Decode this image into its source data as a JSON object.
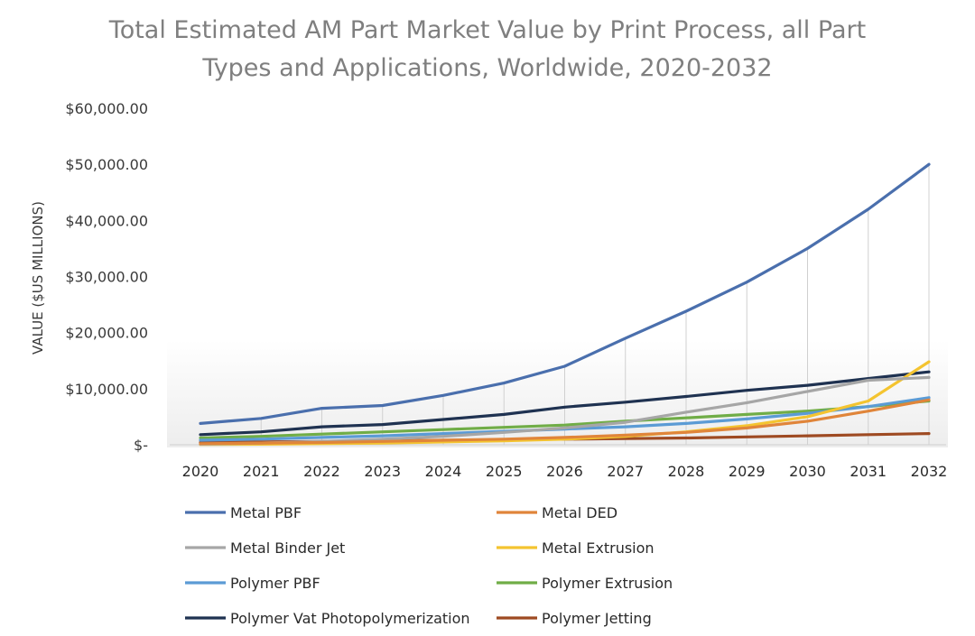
{
  "chart_data": {
    "type": "line",
    "title_lines": [
      "Total Estimated AM Part Market Value by Print Process, all Part",
      "Types and Applications, Worldwide, 2020-2032"
    ],
    "xlabel": "",
    "ylabel": "VALUE ($US MILLIONS)",
    "ylim": [
      0,
      60000
    ],
    "yticks": [
      0,
      10000,
      20000,
      30000,
      40000,
      50000,
      60000
    ],
    "ytick_labels": [
      "$-",
      "$10,000.00",
      "$20,000.00",
      "$30,000.00",
      "$40,000.00",
      "$50,000.00",
      "$60,000.00"
    ],
    "x": [
      "2020",
      "2021",
      "2022",
      "2023",
      "2024",
      "2025",
      "2026",
      "2027",
      "2028",
      "2029",
      "2030",
      "2031",
      "2032"
    ],
    "grid": "vertical",
    "legend_position": "bottom",
    "series": [
      {
        "name": "Metal PBF",
        "color": "#4a6fad",
        "values": [
          3800,
          4700,
          6500,
          7000,
          8800,
          11000,
          14000,
          19000,
          23800,
          29000,
          35000,
          42000,
          50000
        ]
      },
      {
        "name": "Metal DED",
        "color": "#e0853a",
        "values": [
          200,
          300,
          400,
          600,
          800,
          1000,
          1300,
          1700,
          2200,
          3000,
          4200,
          6000,
          8000
        ]
      },
      {
        "name": "Metal Binder Jet",
        "color": "#a6a6a6",
        "values": [
          100,
          300,
          600,
          1000,
          1500,
          2200,
          3000,
          4000,
          5800,
          7500,
          9500,
          11500,
          12000
        ]
      },
      {
        "name": "Metal Extrusion",
        "color": "#f4c430",
        "values": [
          50,
          100,
          200,
          300,
          500,
          700,
          1000,
          1500,
          2300,
          3400,
          5000,
          7800,
          14800
        ]
      },
      {
        "name": "Polymer PBF",
        "color": "#5b9bd5",
        "values": [
          800,
          1000,
          1300,
          1600,
          2000,
          2400,
          2800,
          3200,
          3800,
          4600,
          5600,
          6800,
          8400
        ]
      },
      {
        "name": "Polymer Extrusion",
        "color": "#70ad47",
        "values": [
          1200,
          1500,
          1900,
          2300,
          2700,
          3100,
          3500,
          4200,
          4800,
          5400,
          6000,
          6800,
          7800
        ]
      },
      {
        "name": "Polymer Vat Photopolymerization",
        "color": "#1f3251",
        "values": [
          1800,
          2300,
          3200,
          3600,
          4500,
          5400,
          6700,
          7600,
          8600,
          9700,
          10600,
          11800,
          13000
        ]
      },
      {
        "name": "Polymer Jetting",
        "color": "#9e4a22",
        "values": [
          400,
          500,
          600,
          700,
          800,
          900,
          1000,
          1100,
          1200,
          1400,
          1600,
          1800,
          2000
        ]
      }
    ]
  }
}
